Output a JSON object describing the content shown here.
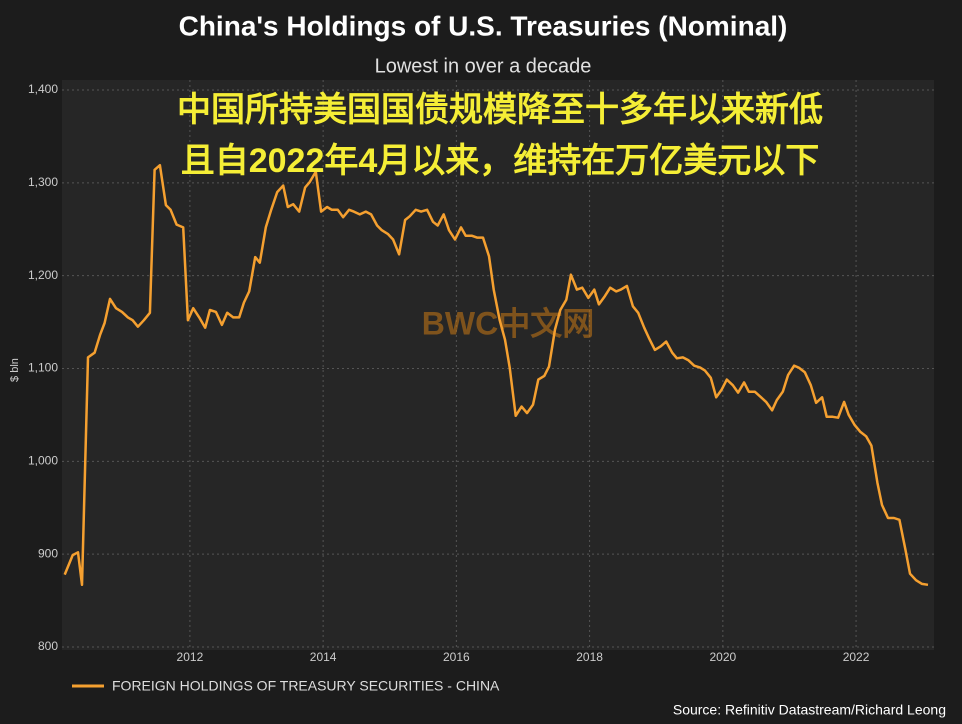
{
  "chart_data": {
    "type": "line",
    "title": "China's Holdings of U.S. Treasuries (Nominal)",
    "subtitle": "Lowest in over a decade",
    "annotations": [
      "中国所持美国国债规模降至十多年以来新低",
      "且自2022年4月以来，维持在万亿美元以下"
    ],
    "watermark": "BWC中文网",
    "y_label": "$ bln",
    "source": "Source: Refinitiv Datastream/Richard Leong",
    "grid": true,
    "xlim": [
      2010.08,
      2023.17
    ],
    "xticks": [
      2012,
      2014,
      2016,
      2018,
      2020,
      2022
    ],
    "ylim": [
      800,
      1400
    ],
    "yticks": [
      800,
      900,
      {
        "value": 1000,
        "label": "1,000"
      },
      {
        "value": 1100,
        "label": "1,100"
      },
      {
        "value": 1200,
        "label": "1,200"
      },
      {
        "value": 1300,
        "label": "1,300"
      },
      {
        "value": 1400,
        "label": "1,400"
      }
    ],
    "x": [
      2010.12,
      2010.24,
      2010.32,
      2010.38,
      2010.47,
      2010.57,
      2010.65,
      2010.72,
      2010.8,
      2010.89,
      2010.98,
      2011.07,
      2011.14,
      2011.22,
      2011.31,
      2011.4,
      2011.47,
      2011.55,
      2011.64,
      2011.71,
      2011.8,
      2011.9,
      2011.97,
      2012.05,
      2012.14,
      2012.23,
      2012.3,
      2012.39,
      2012.48,
      2012.56,
      2012.65,
      2012.74,
      2012.81,
      2012.89,
      2012.98,
      2013.05,
      2013.14,
      2013.22,
      2013.31,
      2013.4,
      2013.47,
      2013.55,
      2013.64,
      2013.73,
      2013.8,
      2013.89,
      2013.97,
      2014.06,
      2014.13,
      2014.22,
      2014.3,
      2014.39,
      2014.46,
      2014.55,
      2014.64,
      2014.72,
      2014.81,
      2014.88,
      2014.97,
      2015.05,
      2015.14,
      2015.23,
      2015.3,
      2015.39,
      2015.47,
      2015.56,
      2015.65,
      2015.72,
      2015.81,
      2015.89,
      2015.98,
      2016.07,
      2016.14,
      2016.23,
      2016.31,
      2016.4,
      2016.49,
      2016.56,
      2016.65,
      2016.73,
      2016.8,
      2016.89,
      2016.98,
      2017.06,
      2017.15,
      2017.23,
      2017.32,
      2017.39,
      2017.48,
      2017.56,
      2017.65,
      2017.72,
      2017.81,
      2017.89,
      2017.98,
      2018.07,
      2018.14,
      2018.23,
      2018.31,
      2018.4,
      2018.47,
      2018.56,
      2018.65,
      2018.73,
      2018.82,
      2018.89,
      2018.98,
      2019.07,
      2019.15,
      2019.24,
      2019.31,
      2019.4,
      2019.48,
      2019.57,
      2019.66,
      2019.73,
      2019.82,
      2019.9,
      2019.98,
      2020.06,
      2020.15,
      2020.23,
      2020.32,
      2020.39,
      2020.48,
      2020.56,
      2020.65,
      2020.74,
      2020.81,
      2020.9,
      2020.98,
      2021.07,
      2021.14,
      2021.23,
      2021.32,
      2021.4,
      2021.49,
      2021.56,
      2021.65,
      2021.73,
      2021.82,
      2021.89,
      2021.98,
      2022.06,
      2022.15,
      2022.23,
      2022.32,
      2022.39,
      2022.48,
      2022.57,
      2022.65,
      2022.74,
      2022.81,
      2022.9,
      2022.99,
      2023.08
    ],
    "series": [
      {
        "name": "FOREIGN HOLDINGS OF TREASURY SECURITIES - CHINA",
        "color": "#f5a030",
        "values": [
          878,
          899,
          902,
          867,
          1112,
          1117,
          1136,
          1149,
          1175,
          1165,
          1161,
          1155,
          1152,
          1145,
          1152,
          1160,
          1314,
          1319,
          1276,
          1271,
          1255,
          1252,
          1152,
          1165,
          1155,
          1144,
          1163,
          1161,
          1147,
          1160,
          1155,
          1155,
          1171,
          1183,
          1220,
          1214,
          1252,
          1271,
          1290,
          1297,
          1274,
          1277,
          1269,
          1295,
          1301,
          1312,
          1269,
          1274,
          1271,
          1271,
          1263,
          1271,
          1269,
          1266,
          1269,
          1266,
          1254,
          1249,
          1245,
          1239,
          1223,
          1260,
          1264,
          1271,
          1269,
          1271,
          1258,
          1254,
          1266,
          1249,
          1239,
          1252,
          1243,
          1243,
          1241,
          1241,
          1221,
          1185,
          1152,
          1131,
          1101,
          1049,
          1059,
          1052,
          1061,
          1088,
          1092,
          1102,
          1142,
          1163,
          1174,
          1201,
          1185,
          1187,
          1176,
          1185,
          1169,
          1178,
          1187,
          1183,
          1185,
          1189,
          1167,
          1160,
          1144,
          1133,
          1120,
          1124,
          1129,
          1117,
          1111,
          1112,
          1109,
          1103,
          1101,
          1098,
          1090,
          1069,
          1077,
          1088,
          1082,
          1074,
          1085,
          1075,
          1075,
          1070,
          1064,
          1055,
          1066,
          1075,
          1093,
          1103,
          1101,
          1096,
          1082,
          1063,
          1069,
          1048,
          1048,
          1047,
          1064,
          1050,
          1039,
          1032,
          1027,
          1017,
          977,
          953,
          939,
          939,
          937,
          905,
          879,
          872,
          868,
          867
        ]
      }
    ]
  }
}
